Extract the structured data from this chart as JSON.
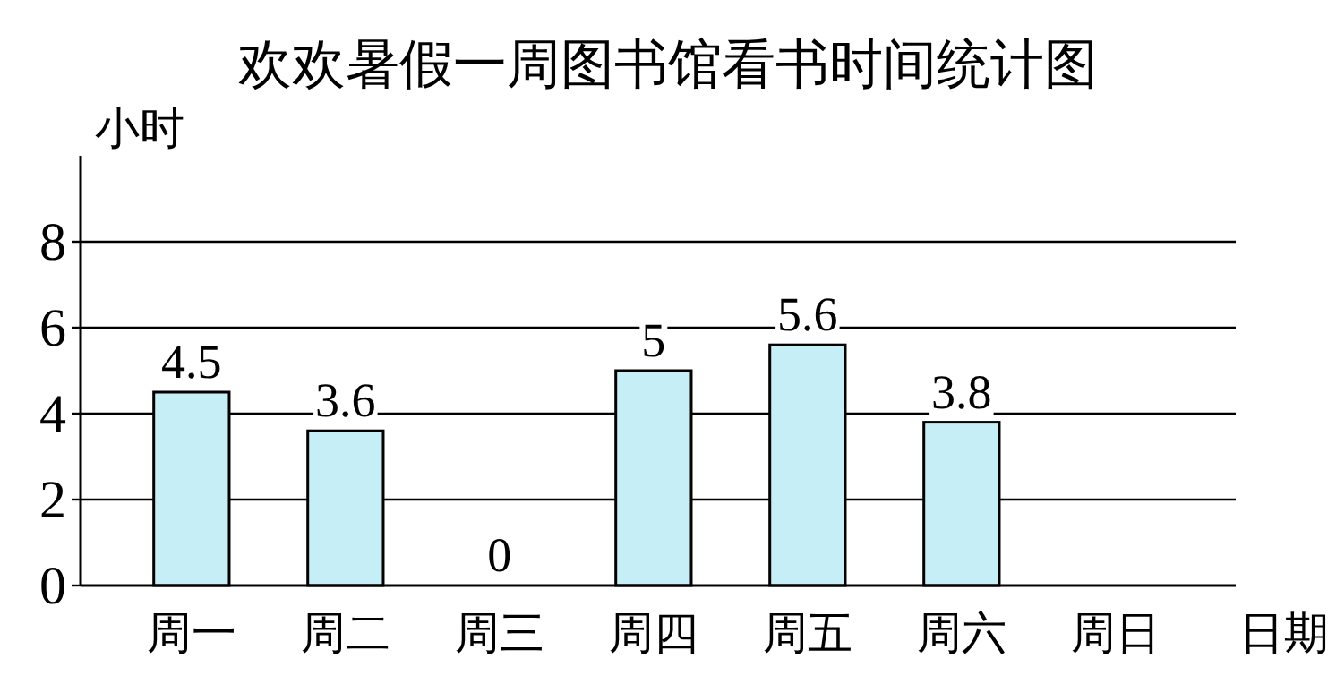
{
  "chart_data": {
    "type": "bar",
    "title": "欢欢暑假一周图书馆看书时间统计图",
    "ylabel": "小时",
    "xlabel": "日期",
    "categories": [
      "周一",
      "周二",
      "周三",
      "周四",
      "周五",
      "周六",
      "周日"
    ],
    "values": [
      4.5,
      3.6,
      0,
      5,
      5.6,
      3.8,
      null
    ],
    "color": "#c6eef6",
    "ylim": [
      0,
      10
    ],
    "yticks": [
      0,
      2,
      4,
      6,
      8
    ],
    "grid": "y",
    "data_labels": true
  }
}
